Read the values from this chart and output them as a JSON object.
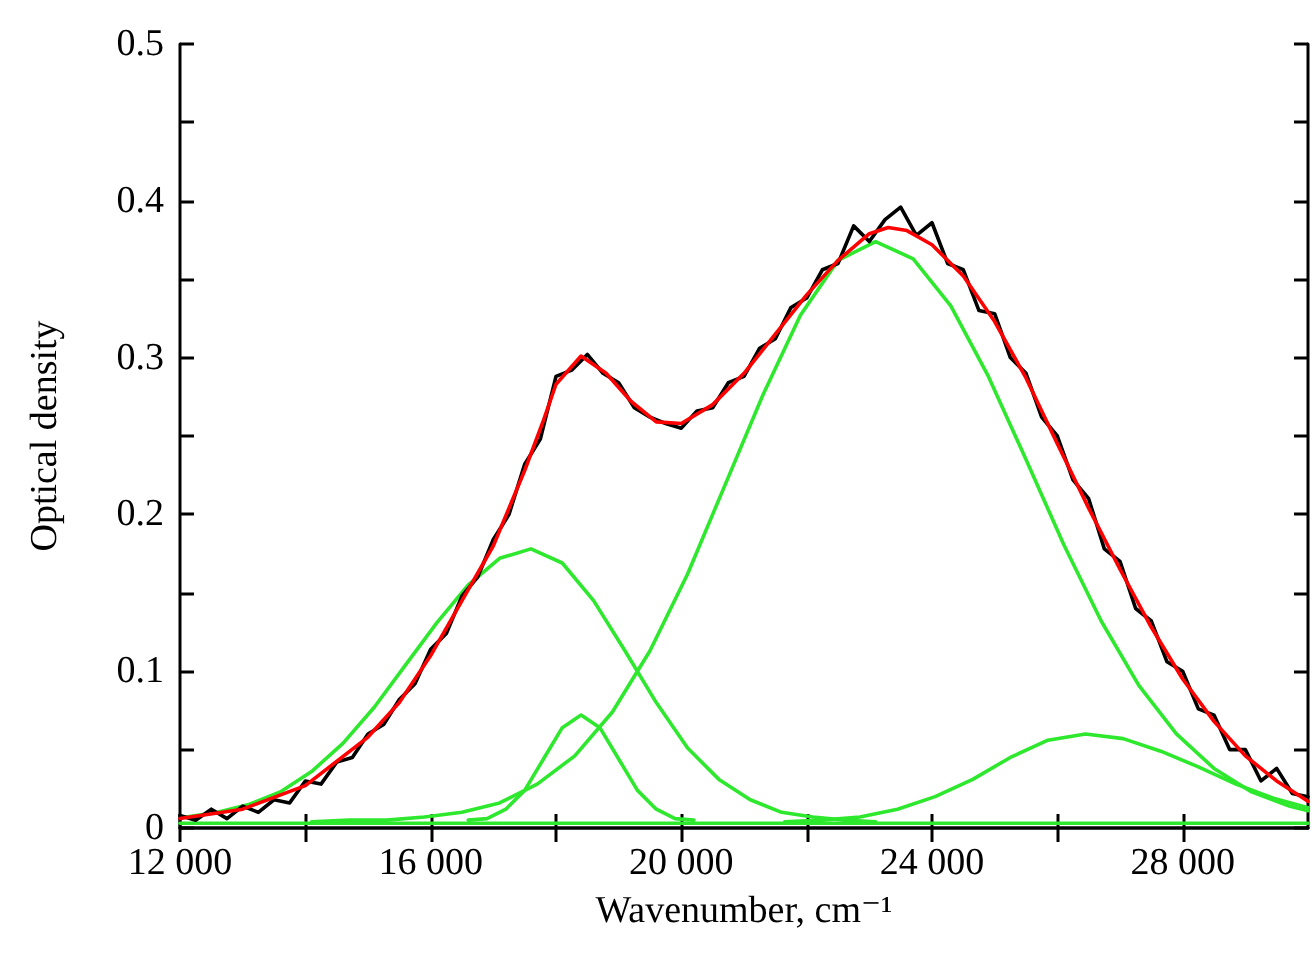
{
  "chart_data": {
    "type": "line",
    "xlabel": "Wavenumber, cm⁻¹",
    "ylabel": "Optical density",
    "xlim": [
      12000,
      30000
    ],
    "ylim": [
      0,
      0.5
    ],
    "xticks": [
      {
        "value": 12000,
        "label": "12 000"
      },
      {
        "value": 14000,
        "label": null
      },
      {
        "value": 16000,
        "label": "16 000"
      },
      {
        "value": 18000,
        "label": null
      },
      {
        "value": 20000,
        "label": "20 000"
      },
      {
        "value": 22000,
        "label": null
      },
      {
        "value": 24000,
        "label": "24 000"
      },
      {
        "value": 26000,
        "label": null
      },
      {
        "value": 28000,
        "label": "28 000"
      }
    ],
    "yticks": [
      0,
      {
        "value": 0.05,
        "label": null
      },
      0.1,
      {
        "value": 0.15,
        "label": null
      },
      0.2,
      {
        "value": 0.25,
        "label": null
      },
      0.3,
      {
        "value": 0.35,
        "label": null
      },
      0.4,
      {
        "value": 0.45,
        "label": null
      },
      0.5
    ],
    "grid": false,
    "series": [
      {
        "color": "#2ee82e",
        "x": [
          12000,
          30000
        ],
        "values": [
          0.003,
          0.003
        ]
      },
      {
        "color": "#2ee82e",
        "x": [
          12100,
          12600,
          13100,
          13600,
          14100,
          14600,
          15100,
          15600,
          16100,
          16600,
          17100,
          17600,
          18100,
          18600,
          19100,
          19600,
          20100,
          20600,
          21100,
          21600,
          22100,
          22600,
          23100
        ],
        "values": [
          0.007,
          0.01,
          0.015,
          0.023,
          0.036,
          0.054,
          0.077,
          0.104,
          0.131,
          0.155,
          0.172,
          0.178,
          0.169,
          0.145,
          0.113,
          0.08,
          0.051,
          0.031,
          0.018,
          0.01,
          0.007,
          0.005,
          0.004
        ]
      },
      {
        "color": "#2ee82e",
        "x": [
          16600,
          16900,
          17200,
          17500,
          17800,
          18100,
          18400,
          18700,
          19000,
          19300,
          19600,
          19900,
          20200
        ],
        "values": [
          0.005,
          0.006,
          0.012,
          0.024,
          0.044,
          0.064,
          0.072,
          0.064,
          0.044,
          0.024,
          0.012,
          0.006,
          0.005
        ]
      },
      {
        "color": "#2ee82e",
        "x": [
          14100,
          14700,
          15300,
          15900,
          16500,
          17100,
          17700,
          18300,
          18900,
          19500,
          20100,
          20700,
          21300,
          21900,
          22500,
          23100,
          23700,
          24300,
          24900,
          25500,
          26100,
          26700,
          27300,
          27900,
          28500,
          29100,
          29700,
          30000
        ],
        "values": [
          0.004,
          0.005,
          0.005,
          0.007,
          0.01,
          0.016,
          0.028,
          0.046,
          0.074,
          0.113,
          0.162,
          0.219,
          0.276,
          0.327,
          0.362,
          0.374,
          0.363,
          0.333,
          0.288,
          0.235,
          0.181,
          0.132,
          0.091,
          0.06,
          0.038,
          0.023,
          0.014,
          0.011
        ]
      },
      {
        "color": "#2ee82e",
        "x": [
          21650,
          22250,
          22850,
          23450,
          24050,
          24650,
          25250,
          25850,
          26450,
          27050,
          27650,
          28250,
          28850,
          29450,
          30000
        ],
        "values": [
          0.004,
          0.005,
          0.007,
          0.012,
          0.02,
          0.031,
          0.045,
          0.056,
          0.06,
          0.057,
          0.049,
          0.039,
          0.028,
          0.019,
          0.013
        ]
      },
      {
        "color": "#000000",
        "x": [
          12000,
          12250,
          12500,
          12750,
          13000,
          13250,
          13500,
          13750,
          14000,
          14250,
          14500,
          14750,
          15000,
          15250,
          15500,
          15750,
          16000,
          16250,
          16500,
          16750,
          17000,
          17250,
          17500,
          17750,
          18000,
          18250,
          18500,
          18750,
          19000,
          19250,
          19500,
          19750,
          20000,
          20250,
          20500,
          20750,
          21000,
          21250,
          21500,
          21750,
          22000,
          22250,
          22500,
          22750,
          23000,
          23250,
          23500,
          23750,
          24000,
          24250,
          24500,
          24750,
          25000,
          25250,
          25500,
          25750,
          26000,
          26250,
          26500,
          26750,
          27000,
          27250,
          27500,
          27750,
          28000,
          28250,
          28500,
          28750,
          29000,
          29250,
          29500,
          29750,
          30000
        ],
        "values": [
          0.008,
          0.005,
          0.012,
          0.006,
          0.014,
          0.01,
          0.018,
          0.016,
          0.03,
          0.028,
          0.042,
          0.045,
          0.06,
          0.066,
          0.082,
          0.092,
          0.114,
          0.124,
          0.148,
          0.16,
          0.184,
          0.2,
          0.232,
          0.248,
          0.288,
          0.292,
          0.302,
          0.29,
          0.284,
          0.268,
          0.262,
          0.258,
          0.255,
          0.266,
          0.268,
          0.284,
          0.288,
          0.306,
          0.312,
          0.332,
          0.338,
          0.356,
          0.36,
          0.384,
          0.374,
          0.388,
          0.396,
          0.378,
          0.386,
          0.36,
          0.356,
          0.33,
          0.328,
          0.3,
          0.29,
          0.262,
          0.25,
          0.222,
          0.21,
          0.178,
          0.17,
          0.14,
          0.132,
          0.106,
          0.1,
          0.076,
          0.072,
          0.05,
          0.05,
          0.03,
          0.038,
          0.022,
          0.02
        ]
      },
      {
        "color": "#ff0000",
        "x": [
          12000,
          13000,
          14000,
          15000,
          15500,
          16000,
          16500,
          17000,
          17500,
          17800,
          18000,
          18400,
          18800,
          19200,
          19600,
          20000,
          20500,
          21000,
          21500,
          22000,
          22500,
          23000,
          23300,
          23600,
          24000,
          24500,
          25000,
          25500,
          26000,
          26500,
          27000,
          27500,
          28000,
          28500,
          29000,
          29500,
          30000
        ],
        "values": [
          0.006,
          0.012,
          0.027,
          0.058,
          0.08,
          0.11,
          0.145,
          0.18,
          0.228,
          0.26,
          0.283,
          0.301,
          0.29,
          0.272,
          0.259,
          0.258,
          0.27,
          0.29,
          0.315,
          0.34,
          0.362,
          0.379,
          0.383,
          0.381,
          0.372,
          0.352,
          0.323,
          0.287,
          0.245,
          0.204,
          0.165,
          0.128,
          0.095,
          0.068,
          0.046,
          0.03,
          0.017
        ]
      }
    ]
  }
}
